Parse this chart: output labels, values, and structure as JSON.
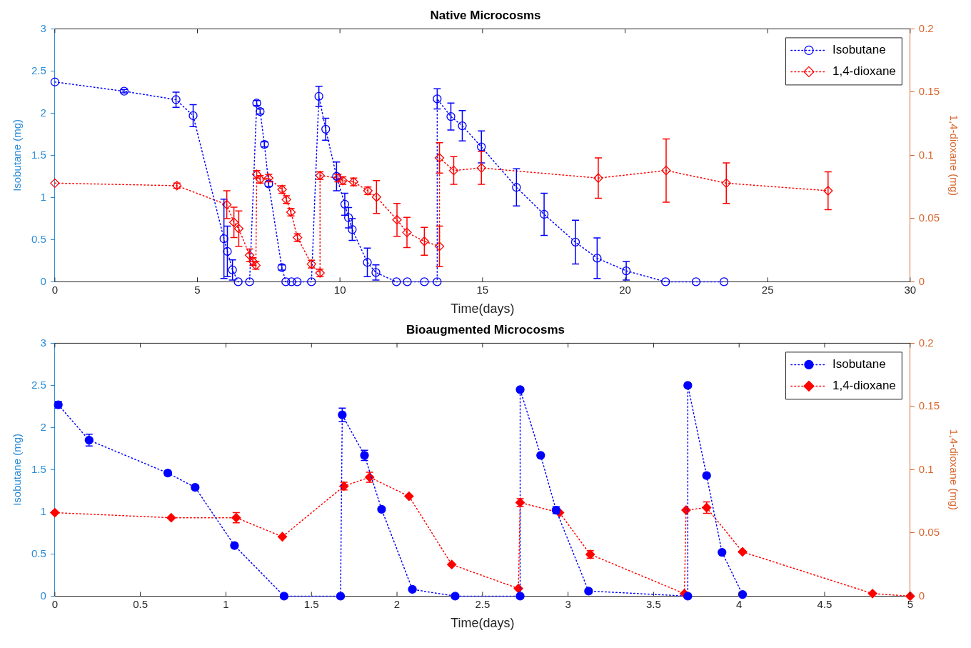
{
  "chart_data": [
    {
      "type": "line",
      "title": "Native Microcosms",
      "xlabel": "Time(days)",
      "ylabel": "Isobutane (mg)",
      "y2label": "1,4-dioxane (mg)",
      "xlim": [
        0,
        30
      ],
      "xticks": [
        0,
        5,
        10,
        15,
        20,
        25,
        30
      ],
      "ylim": [
        0,
        3
      ],
      "yticks": [
        0,
        0.5,
        1,
        1.5,
        2,
        2.5,
        3
      ],
      "y2lim": [
        0,
        0.2
      ],
      "y2ticks": [
        0,
        0.05,
        0.1,
        0.15,
        0.2
      ],
      "grid": false,
      "legend": "top right",
      "line_style": "dotted",
      "series": [
        {
          "name": "Isobutane",
          "color": "#0000ff",
          "marker": "circle",
          "x": [
            0,
            2.43,
            4.25,
            4.85,
            5.93,
            6.05,
            6.23,
            6.43,
            6.83,
            7.08,
            7.2,
            7.35,
            7.5,
            7.96,
            8.1,
            8.3,
            8.5,
            9.0,
            9.26,
            9.5,
            9.88,
            10.17,
            10.3,
            10.43,
            10.96,
            11.26,
            11.98,
            12.36,
            12.96,
            13.41,
            13.41,
            13.89,
            14.29,
            14.96,
            16.19,
            17.16,
            18.26,
            19.02,
            20.04,
            21.42,
            22.49,
            23.47
          ],
          "values": [
            2.37,
            2.26,
            2.16,
            1.97,
            0.51,
            0.36,
            0.14,
            0,
            0,
            2.12,
            2.02,
            1.63,
            1.16,
            0.17,
            0,
            0,
            0,
            0,
            2.2,
            1.81,
            1.25,
            0.92,
            0.76,
            0.62,
            0.23,
            0.11,
            0,
            0,
            0,
            0,
            2.17,
            1.96,
            1.85,
            1.6,
            1.12,
            0.8,
            0.47,
            0.28,
            0.13,
            0,
            0,
            0
          ],
          "errors": [
            null,
            0.02,
            0.09,
            0.13,
            0.47,
            0.3,
            0.12,
            null,
            null,
            0.03,
            0.03,
            0.03,
            0.03,
            0.03,
            null,
            null,
            null,
            null,
            0.12,
            0.13,
            0.17,
            0.13,
            0.12,
            0.13,
            0.17,
            0.09,
            null,
            null,
            null,
            null,
            0.12,
            0.16,
            0.18,
            0.19,
            0.22,
            0.25,
            0.26,
            0.24,
            0.11,
            null,
            null,
            null
          ]
        },
        {
          "name": "1,4-dioxane",
          "color": "#ff0000",
          "marker": "diamond",
          "axis": "y2",
          "x": [
            0,
            4.28,
            6.03,
            6.28,
            6.45,
            6.83,
            6.95,
            7.05,
            7.08,
            7.2,
            7.5,
            7.97,
            8.12,
            8.28,
            8.51,
            9.0,
            9.3,
            9.3,
            9.93,
            10.1,
            10.48,
            10.98,
            11.28,
            12.0,
            12.35,
            12.96,
            13.49,
            13.49,
            13.99,
            14.96,
            19.06,
            21.44,
            23.55,
            27.12
          ],
          "values": [
            0.078,
            0.076,
            0.061,
            0.047,
            0.042,
            0.021,
            0.016,
            0.013,
            0.085,
            0.081,
            0.082,
            0.073,
            0.065,
            0.055,
            0.035,
            0.014,
            0.007,
            0.084,
            0.082,
            0.08,
            0.079,
            0.072,
            0.067,
            0.049,
            0.039,
            0.032,
            0.028,
            0.098,
            0.088,
            0.09,
            0.082,
            0.088,
            0.078,
            0.072
          ],
          "errors": [
            null,
            0.002,
            0.011,
            0.012,
            0.014,
            0.005,
            0.003,
            0.003,
            0.003,
            0.003,
            0.003,
            0.003,
            0.003,
            0.003,
            0.003,
            0.003,
            0.003,
            0.003,
            0.003,
            0.003,
            0.003,
            0.003,
            0.013,
            0.013,
            0.012,
            0.011,
            0.016,
            0.012,
            0.011,
            0.013,
            0.016,
            0.025,
            0.016,
            0.015
          ]
        }
      ]
    },
    {
      "type": "line",
      "title": "Bioaugmented Microcosms",
      "xlabel": "Time(days)",
      "ylabel": "Isobutane (mg)",
      "y2label": "1,4-dioxane (mg)",
      "xlim": [
        0,
        5
      ],
      "xticks": [
        0,
        0.5,
        1,
        1.5,
        2,
        2.5,
        3,
        3.5,
        4,
        4.5,
        5
      ],
      "ylim": [
        0,
        3
      ],
      "yticks": [
        0,
        0.5,
        1,
        1.5,
        2,
        2.5,
        3
      ],
      "y2lim": [
        0,
        0.2
      ],
      "y2ticks": [
        0,
        0.05,
        0.1,
        0.15,
        0.2
      ],
      "grid": false,
      "legend": "top right",
      "line_style": "dotted",
      "series": [
        {
          "name": "Isobutane",
          "color": "#0000ff",
          "marker": "circle",
          "x": [
            0.02,
            0.2,
            0.66,
            0.82,
            1.05,
            1.34,
            1.67,
            1.68,
            1.81,
            1.91,
            2.09,
            2.34,
            2.72,
            2.72,
            2.84,
            2.93,
            3.12,
            3.7,
            3.7,
            3.81,
            3.9,
            4.02
          ],
          "values": [
            2.27,
            1.85,
            1.46,
            1.29,
            0.6,
            0,
            0,
            2.15,
            1.67,
            1.03,
            0.08,
            0,
            0,
            2.45,
            1.67,
            1.02,
            0.06,
            0,
            2.5,
            1.43,
            0.52,
            0.02
          ],
          "errors": [
            0.04,
            0.07,
            null,
            null,
            null,
            null,
            null,
            0.08,
            0.06,
            null,
            null,
            null,
            null,
            null,
            null,
            0.04,
            null,
            null,
            null,
            null,
            null,
            null
          ]
        },
        {
          "name": "1,4-dioxane",
          "color": "#ff0000",
          "marker": "diamond",
          "axis": "y2",
          "x": [
            0,
            0.68,
            1.06,
            1.33,
            1.69,
            1.84,
            2.07,
            2.32,
            2.71,
            2.72,
            2.95,
            3.13,
            3.68,
            3.69,
            3.81,
            4.02,
            4.78,
            5
          ],
          "values": [
            0.066,
            0.062,
            0.062,
            0.047,
            0.087,
            0.094,
            0.079,
            0.025,
            0.006,
            0.074,
            0.066,
            0.033,
            0.002,
            0.068,
            0.07,
            0.035,
            0.002,
            0
          ],
          "errors": [
            null,
            null,
            0.004,
            null,
            0.003,
            0.004,
            null,
            null,
            null,
            0.003,
            null,
            0.003,
            null,
            null,
            0.0045,
            null,
            null,
            null
          ]
        }
      ]
    }
  ]
}
